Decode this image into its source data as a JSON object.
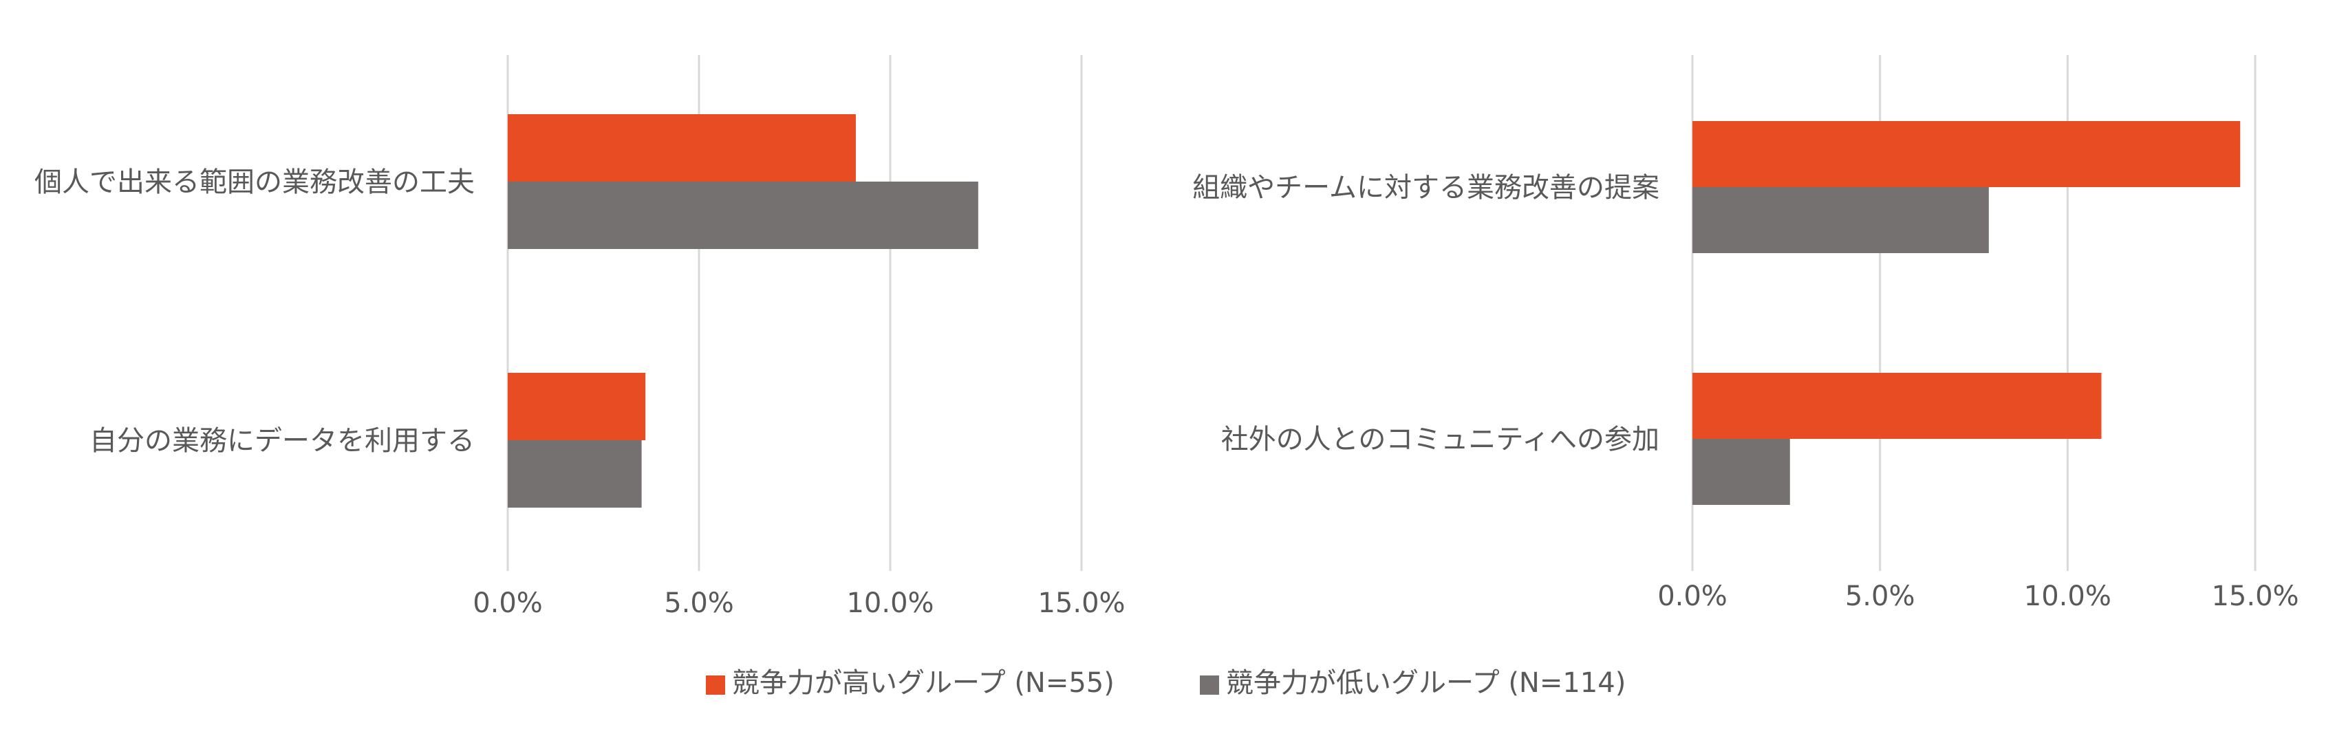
{
  "chart_data": {
    "type": "bar",
    "orientation": "horizontal",
    "legend": {
      "placement": "bottom",
      "entries": [
        {
          "name": "競争力が高いグループ (N=55)",
          "color": "#E84C22"
        },
        {
          "name": "競争力が低いグループ (N=114)",
          "color": "#767171"
        }
      ]
    },
    "charts": [
      {
        "categories": [
          "個人で出来る範囲の業務改善の工夫",
          "自分の業務にデータを利用する"
        ],
        "series": [
          {
            "name": "競争力が高いグループ (N=55)",
            "values": [
              9.1,
              3.6
            ]
          },
          {
            "name": "競争力が低いグループ (N=114)",
            "values": [
              12.3,
              3.5
            ]
          }
        ],
        "xlim": [
          0,
          15
        ],
        "ticks": [
          "0.0%",
          "5.0%",
          "10.0%",
          "15.0%"
        ],
        "grid": true
      },
      {
        "categories": [
          "組織やチームに対する業務改善の提案",
          "社外の人とのコミュニティへの参加"
        ],
        "series": [
          {
            "name": "競争力が高いグループ (N=55)",
            "values": [
              14.6,
              10.9
            ]
          },
          {
            "name": "競争力が低いグループ (N=114)",
            "values": [
              7.9,
              2.6
            ]
          }
        ],
        "xlim": [
          0,
          15
        ],
        "ticks": [
          "0.0%",
          "5.0%",
          "10.0%",
          "15.0%"
        ],
        "grid": true
      }
    ]
  }
}
